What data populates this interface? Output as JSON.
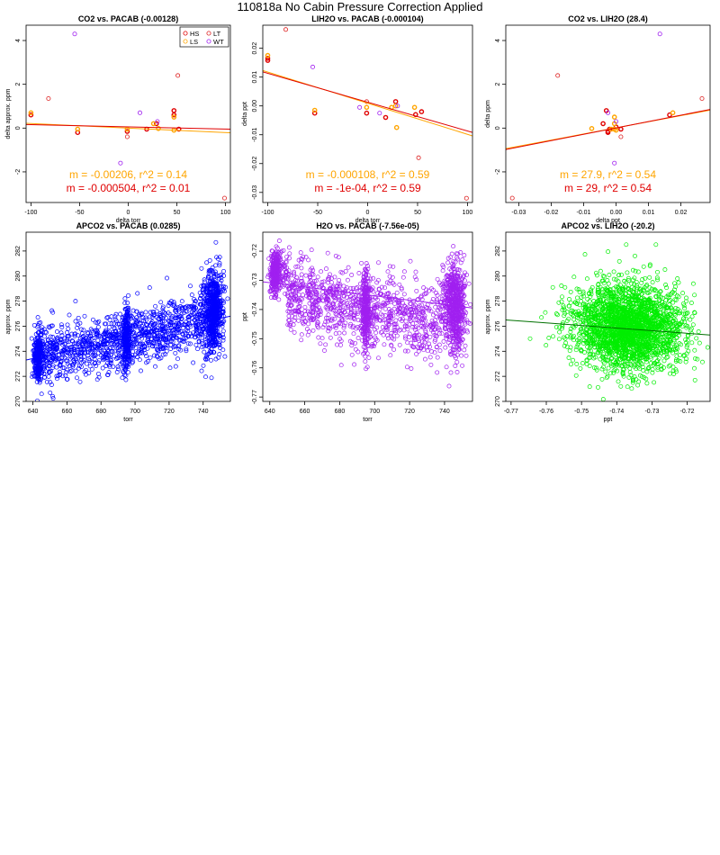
{
  "page": {
    "title": "110818a   No Cabin Pressure Correction Applied"
  },
  "colors": {
    "HS": "#e00000",
    "LS": "#ffa500",
    "LT": "#dd2222",
    "WT": "#a020f0",
    "blue": "#0000ff",
    "purple": "#a020f0",
    "green": "#00ee00",
    "darkgreen": "#007000",
    "orange": "#ffa500",
    "red": "#e00000"
  },
  "chart_data": [
    {
      "type": "scatter",
      "title": "CO2 vs. PACAB (-0.00128)",
      "xlabel": "delta torr",
      "ylabel": "delta approx. ppm",
      "xlim": [
        -105,
        105
      ],
      "ylim": [
        -3.4,
        4.7
      ],
      "xticks": [
        -100,
        -50,
        0,
        50,
        100
      ],
      "xtick_labels": [
        "-100",
        "-50",
        "0",
        "50",
        "100"
      ],
      "yticks": [
        -2,
        0,
        2,
        4
      ],
      "ytick_labels": [
        "-2",
        "0",
        "2",
        "4"
      ],
      "legend": {
        "position": "top-right",
        "entries": [
          {
            "label": "HS",
            "color_key": "HS"
          },
          {
            "label": "LT",
            "color_key": "LT"
          },
          {
            "label": "LS",
            "color_key": "LS"
          },
          {
            "label": "WT",
            "color_key": "WT"
          }
        ]
      },
      "series": [
        {
          "name": "HS",
          "color_key": "HS",
          "points": [
            [
              -100,
              0.6
            ],
            [
              -52,
              -0.2
            ],
            [
              -1,
              -0.15
            ],
            [
              19,
              -0.05
            ],
            [
              29,
              0.2
            ],
            [
              47,
              0.8
            ],
            [
              47,
              0.6
            ],
            [
              52,
              -0.05
            ]
          ]
        },
        {
          "name": "LS",
          "color_key": "LS",
          "points": [
            [
              -100,
              0.7
            ],
            [
              -52,
              -0.05
            ],
            [
              -1,
              -0.05
            ],
            [
              26,
              0.2
            ],
            [
              31,
              -0.02
            ],
            [
              47,
              0.5
            ],
            [
              47,
              -0.1
            ]
          ]
        },
        {
          "name": "LT",
          "color_key": "LT",
          "points": [
            [
              -82,
              1.35
            ],
            [
              51,
              2.4
            ],
            [
              99,
              -3.2
            ],
            [
              -1,
              -0.4
            ]
          ]
        },
        {
          "name": "WT",
          "color_key": "WT",
          "points": [
            [
              -55,
              4.3
            ],
            [
              12,
              0.7
            ],
            [
              -8,
              -1.6
            ],
            [
              30,
              0.3
            ]
          ]
        }
      ],
      "fits": [
        {
          "color_key": "orange",
          "x": [
            -105,
            105
          ],
          "y": [
            0.216,
            -0.216
          ],
          "label": "m = -0.00206, r^2 = 0.14",
          "label_pos": "upper"
        },
        {
          "color_key": "red",
          "x": [
            -105,
            105
          ],
          "y": [
            0.16,
            -0.05
          ],
          "label": "m = -0.000504, r^2 = 0.01",
          "label_pos": "lower"
        }
      ]
    },
    {
      "type": "scatter",
      "title": "LIH2O vs. PACAB (-0.000104)",
      "xlabel": "delta torr",
      "ylabel": "delta ppt",
      "xlim": [
        -105,
        105
      ],
      "ylim": [
        -0.0335,
        0.028
      ],
      "xticks": [
        -100,
        -50,
        0,
        50,
        100
      ],
      "xtick_labels": [
        "-100",
        "-50",
        "0",
        "50",
        "100"
      ],
      "yticks": [
        -0.03,
        -0.02,
        -0.01,
        0.0,
        0.01,
        0.02
      ],
      "ytick_labels": [
        "-0.03",
        "-0.02",
        "-0.01",
        "0.00",
        "0.01",
        "0.02"
      ],
      "series": [
        {
          "name": "HS",
          "color_key": "HS",
          "points": [
            [
              -100,
              0.0165
            ],
            [
              -100,
              0.0158
            ],
            [
              -53,
              -0.0025
            ],
            [
              -1,
              -0.0025
            ],
            [
              28,
              0.0015
            ],
            [
              18,
              -0.004
            ],
            [
              54,
              -0.002
            ],
            [
              48,
              -0.003
            ]
          ]
        },
        {
          "name": "LS",
          "color_key": "LS",
          "points": [
            [
              -100,
              0.0175
            ],
            [
              -53,
              -0.0015
            ],
            [
              -1,
              -0.0005
            ],
            [
              24,
              -0.0005
            ],
            [
              29,
              -0.0075
            ],
            [
              47,
              -0.0005
            ],
            [
              28,
              0.0
            ]
          ]
        },
        {
          "name": "LT",
          "color_key": "LT",
          "points": [
            [
              -82,
              0.0265
            ],
            [
              99,
              -0.032
            ],
            [
              51,
              -0.018
            ],
            [
              -1,
              0.0015
            ]
          ]
        },
        {
          "name": "WT",
          "color_key": "WT",
          "points": [
            [
              -55,
              0.0135
            ],
            [
              12,
              -0.0025
            ],
            [
              -8,
              -0.0005
            ],
            [
              30,
              0.0
            ]
          ]
        }
      ],
      "fits": [
        {
          "color_key": "orange",
          "x": [
            -105,
            105
          ],
          "y": [
            0.0123,
            -0.0104
          ],
          "label": "m = -0.000108, r^2 = 0.59",
          "label_pos": "upper"
        },
        {
          "color_key": "red",
          "x": [
            -105,
            105
          ],
          "y": [
            0.0118,
            -0.0092
          ],
          "label": "m = -1e-04, r^2 = 0.59",
          "label_pos": "lower"
        }
      ]
    },
    {
      "type": "scatter",
      "title": "CO2 vs. LIH2O (28.4)",
      "xlabel": "delta ppt",
      "ylabel": "delta ppm",
      "xlim": [
        -0.034,
        0.029
      ],
      "ylim": [
        -3.4,
        4.7
      ],
      "xticks": [
        -0.03,
        -0.02,
        -0.01,
        0.0,
        0.01,
        0.02
      ],
      "xtick_labels": [
        "-0.03",
        "-0.02",
        "-0.01",
        "0.00",
        "0.01",
        "0.02"
      ],
      "yticks": [
        -2,
        0,
        2,
        4
      ],
      "ytick_labels": [
        "-2",
        "0",
        "2",
        "4"
      ],
      "series": [
        {
          "name": "HS",
          "color_key": "HS",
          "points": [
            [
              0.0165,
              0.6
            ],
            [
              -0.0025,
              -0.2
            ],
            [
              -0.0025,
              -0.15
            ],
            [
              0.0015,
              -0.05
            ],
            [
              -0.004,
              0.2
            ],
            [
              -0.003,
              0.8
            ],
            [
              -0.002,
              -0.05
            ],
            [
              0.0,
              0.05
            ]
          ]
        },
        {
          "name": "LS",
          "color_key": "LS",
          "points": [
            [
              0.0175,
              0.7
            ],
            [
              -0.0015,
              -0.05
            ],
            [
              -0.0005,
              -0.05
            ],
            [
              -0.0005,
              0.2
            ],
            [
              -0.0075,
              -0.02
            ],
            [
              -0.0005,
              0.5
            ],
            [
              0.0,
              -0.1
            ]
          ]
        },
        {
          "name": "LT",
          "color_key": "LT",
          "points": [
            [
              0.0265,
              1.35
            ],
            [
              -0.018,
              2.4
            ],
            [
              -0.032,
              -3.2
            ],
            [
              0.0015,
              -0.4
            ]
          ]
        },
        {
          "name": "WT",
          "color_key": "WT",
          "points": [
            [
              0.0135,
              4.3
            ],
            [
              -0.0025,
              0.7
            ],
            [
              -0.0005,
              -1.6
            ],
            [
              0.0,
              0.3
            ]
          ]
        }
      ],
      "fits": [
        {
          "color_key": "orange",
          "x": [
            -0.034,
            0.029
          ],
          "y": [
            -0.94,
            0.82
          ],
          "label": "m = 27.9, r^2 = 0.54",
          "label_pos": "upper"
        },
        {
          "color_key": "red",
          "x": [
            -0.034,
            0.029
          ],
          "y": [
            -0.98,
            0.85
          ],
          "label": "m = 29, r^2 = 0.54",
          "label_pos": "lower"
        }
      ]
    },
    {
      "type": "scatter",
      "title": "APCO2 vs. PACAB (0.0285)",
      "xlabel": "torr",
      "ylabel": "approx. ppm",
      "xlim": [
        636,
        756
      ],
      "ylim": [
        270,
        283.5
      ],
      "xticks": [
        640,
        660,
        680,
        700,
        720,
        740
      ],
      "xtick_labels": [
        "640",
        "660",
        "680",
        "700",
        "720",
        "740"
      ],
      "yticks": [
        270,
        272,
        274,
        276,
        278,
        280,
        282
      ],
      "ytick_labels": [
        "270",
        "272",
        "274",
        "276",
        "278",
        "280",
        "282"
      ],
      "cloud": {
        "color_key": "blue",
        "n": 2200,
        "seed": 11,
        "model": "apco2_pacab"
      },
      "fits": [
        {
          "color_key": "blue",
          "x": [
            636,
            756
          ],
          "y": [
            273.3,
            276.8
          ]
        }
      ]
    },
    {
      "type": "scatter",
      "title": "H2O vs. PACAB (-7.56e-05)",
      "xlabel": "torr",
      "ylabel": "ppt",
      "xlim": [
        636,
        756
      ],
      "ylim": [
        -0.7715,
        -0.7135
      ],
      "xticks": [
        640,
        660,
        680,
        700,
        720,
        740
      ],
      "xtick_labels": [
        "640",
        "660",
        "680",
        "700",
        "720",
        "740"
      ],
      "yticks": [
        -0.77,
        -0.76,
        -0.75,
        -0.74,
        -0.73,
        -0.72
      ],
      "ytick_labels": [
        "-0.77",
        "-0.76",
        "-0.75",
        "-0.74",
        "-0.73",
        "-0.72"
      ],
      "cloud": {
        "color_key": "purple",
        "n": 2200,
        "seed": 23,
        "model": "h2o_pacab"
      },
      "fits": [
        {
          "color_key": "purple",
          "x": [
            636,
            756
          ],
          "y": [
            -0.7305,
            -0.7395
          ]
        }
      ]
    },
    {
      "type": "scatter",
      "title": "APCO2 vs. LIH2O (-20.2)",
      "xlabel": "ppt",
      "ylabel": "approx. ppm",
      "xlim": [
        -0.7715,
        -0.7135
      ],
      "ylim": [
        270,
        283.5
      ],
      "xticks": [
        -0.77,
        -0.76,
        -0.75,
        -0.74,
        -0.73,
        -0.72
      ],
      "xtick_labels": [
        "-0.77",
        "-0.76",
        "-0.75",
        "-0.74",
        "-0.73",
        "-0.72"
      ],
      "yticks": [
        270,
        272,
        274,
        276,
        278,
        280,
        282
      ],
      "ytick_labels": [
        "270",
        "272",
        "274",
        "276",
        "278",
        "280",
        "282"
      ],
      "cloud": {
        "color_key": "green",
        "n": 2400,
        "seed": 37,
        "model": "apco2_lih2o"
      },
      "fits": [
        {
          "color_key": "darkgreen",
          "x": [
            -0.7715,
            -0.7135
          ],
          "y": [
            276.5,
            275.3
          ]
        }
      ]
    }
  ]
}
